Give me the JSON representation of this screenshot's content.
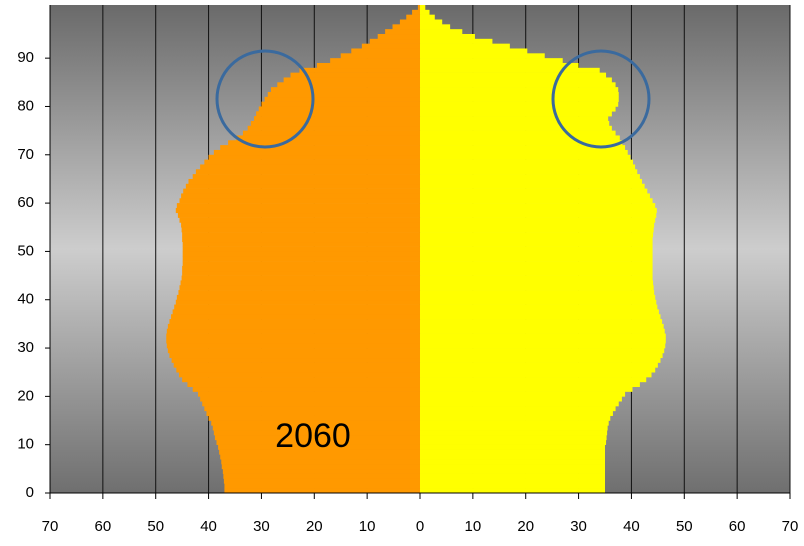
{
  "chart_data": {
    "type": "pyramid",
    "annotation": "2060",
    "xlim": [
      -70,
      70
    ],
    "xticks": [
      {
        "value": -70,
        "label": "70"
      },
      {
        "value": -60,
        "label": "60"
      },
      {
        "value": -50,
        "label": "50"
      },
      {
        "value": -40,
        "label": "40"
      },
      {
        "value": -30,
        "label": "30"
      },
      {
        "value": -20,
        "label": "20"
      },
      {
        "value": -10,
        "label": "10"
      },
      0,
      10,
      20,
      30,
      40,
      50,
      60,
      70
    ],
    "ylim": [
      0,
      101
    ],
    "yticks": [
      0,
      10,
      20,
      30,
      40,
      50,
      60,
      70,
      80,
      90
    ],
    "grid": true,
    "series": [
      {
        "color": "#ff9900",
        "values": [
          -37.0,
          -37.0,
          -37.1,
          -37.2,
          -37.3,
          -37.5,
          -37.6,
          -37.8,
          -38.0,
          -38.2,
          -38.5,
          -38.8,
          -39.0,
          -39.2,
          -39.5,
          -40.0,
          -40.4,
          -40.8,
          -41.2,
          -41.6,
          -42.0,
          -43.0,
          -44.0,
          -45.0,
          -45.6,
          -46.1,
          -46.6,
          -47.0,
          -47.4,
          -47.7,
          -47.9,
          -48.0,
          -48.0,
          -47.9,
          -47.7,
          -47.4,
          -47.1,
          -46.8,
          -46.5,
          -46.2,
          -46.0,
          -45.7,
          -45.5,
          -45.3,
          -45.1,
          -45.0,
          -45.0,
          -44.9,
          -44.9,
          -44.9,
          -44.9,
          -44.9,
          -45.0,
          -45.0,
          -45.1,
          -45.2,
          -45.5,
          -45.8,
          -46.2,
          -46.0,
          -45.5,
          -45.2,
          -44.8,
          -44.3,
          -43.8,
          -43.0,
          -42.4,
          -41.6,
          -40.8,
          -40.0,
          -39.0,
          -37.8,
          -36.3,
          -34.8,
          -33.5,
          -32.6,
          -32.0,
          -31.4,
          -31.0,
          -30.5,
          -30.0,
          -29.4,
          -28.8,
          -28.2,
          -27.0,
          -25.8,
          -24.5,
          -22.8,
          -19.5,
          -17.0,
          -15.0,
          -13.0,
          -11.0,
          -9.5,
          -8.0,
          -6.6,
          -5.2,
          -3.8,
          -2.6,
          -1.5,
          -0.4
        ]
      },
      {
        "color": "#ffff00",
        "values": [
          35.0,
          35.0,
          35.0,
          35.0,
          35.0,
          35.0,
          35.0,
          35.0,
          35.0,
          35.0,
          35.2,
          35.3,
          35.4,
          35.5,
          35.7,
          36.0,
          36.5,
          37.0,
          37.6,
          38.2,
          38.8,
          40.2,
          41.6,
          42.8,
          43.8,
          44.5,
          45.0,
          45.5,
          45.9,
          46.2,
          46.4,
          46.5,
          46.5,
          46.3,
          46.1,
          45.8,
          45.5,
          45.2,
          44.9,
          44.7,
          44.5,
          44.3,
          44.2,
          44.1,
          44.0,
          44.0,
          44.0,
          44.0,
          44.0,
          44.0,
          44.0,
          44.0,
          44.0,
          44.1,
          44.2,
          44.3,
          44.5,
          44.7,
          44.8,
          44.5,
          44.0,
          43.5,
          43.0,
          42.5,
          42.0,
          41.6,
          41.1,
          40.7,
          40.3,
          39.8,
          39.3,
          38.8,
          38.3,
          37.8,
          37.0,
          36.3,
          35.8,
          35.6,
          36.3,
          37.0,
          37.5,
          37.6,
          37.6,
          37.5,
          37.0,
          36.3,
          35.2,
          34.0,
          30.0,
          27.0,
          23.6,
          20.3,
          17.0,
          13.7,
          10.4,
          8.0,
          5.7,
          4.2,
          2.8,
          1.8,
          1.0
        ]
      }
    ]
  }
}
